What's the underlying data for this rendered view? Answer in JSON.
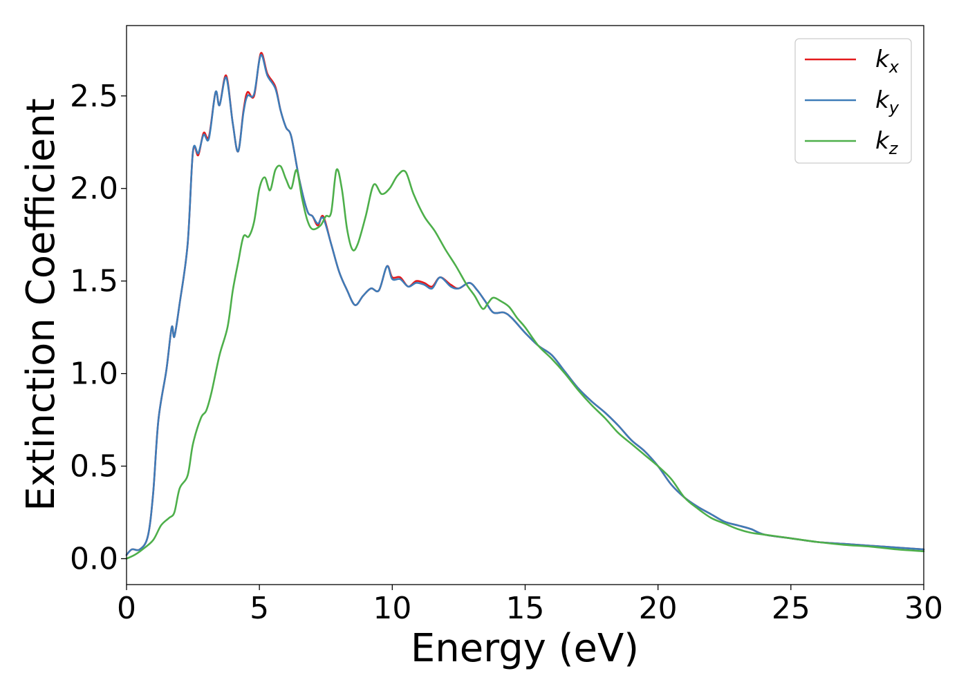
{
  "chart_data": {
    "type": "line",
    "xlabel": "Energy (eV)",
    "ylabel": "Extinction Coefficient",
    "xlim": [
      0,
      30
    ],
    "ylim": [
      -0.14,
      2.88
    ],
    "xticks": [
      0,
      5,
      10,
      15,
      20,
      25,
      30
    ],
    "xtick_labels": [
      "0",
      "5",
      "10",
      "15",
      "20",
      "25",
      "30"
    ],
    "yticks": [
      0.0,
      0.5,
      1.0,
      1.5,
      2.0,
      2.5
    ],
    "ytick_labels": [
      "0.0",
      "0.5",
      "1.0",
      "1.5",
      "2.0",
      "2.5"
    ],
    "grid": false,
    "legend_position": "top-right",
    "series": [
      {
        "name": "k",
        "subscript": "x",
        "color": "#e31a1c",
        "points": [
          [
            0,
            0.02
          ],
          [
            0.2,
            0.05
          ],
          [
            0.5,
            0.05
          ],
          [
            0.8,
            0.12
          ],
          [
            1.0,
            0.35
          ],
          [
            1.2,
            0.75
          ],
          [
            1.5,
            1.02
          ],
          [
            1.7,
            1.25
          ],
          [
            1.8,
            1.2
          ],
          [
            2.0,
            1.38
          ],
          [
            2.3,
            1.7
          ],
          [
            2.5,
            2.2
          ],
          [
            2.7,
            2.18
          ],
          [
            2.9,
            2.3
          ],
          [
            3.1,
            2.28
          ],
          [
            3.35,
            2.52
          ],
          [
            3.5,
            2.45
          ],
          [
            3.75,
            2.61
          ],
          [
            4.0,
            2.35
          ],
          [
            4.2,
            2.2
          ],
          [
            4.4,
            2.42
          ],
          [
            4.55,
            2.52
          ],
          [
            4.8,
            2.5
          ],
          [
            5.05,
            2.73
          ],
          [
            5.3,
            2.62
          ],
          [
            5.6,
            2.55
          ],
          [
            5.8,
            2.42
          ],
          [
            6.0,
            2.33
          ],
          [
            6.2,
            2.28
          ],
          [
            6.5,
            2.05
          ],
          [
            6.8,
            1.88
          ],
          [
            7.0,
            1.85
          ],
          [
            7.2,
            1.8
          ],
          [
            7.4,
            1.85
          ],
          [
            7.7,
            1.7
          ],
          [
            8.0,
            1.55
          ],
          [
            8.3,
            1.45
          ],
          [
            8.6,
            1.37
          ],
          [
            8.9,
            1.42
          ],
          [
            9.2,
            1.46
          ],
          [
            9.5,
            1.45
          ],
          [
            9.8,
            1.58
          ],
          [
            10.0,
            1.52
          ],
          [
            10.3,
            1.52
          ],
          [
            10.6,
            1.47
          ],
          [
            10.9,
            1.5
          ],
          [
            11.2,
            1.49
          ],
          [
            11.5,
            1.47
          ],
          [
            11.8,
            1.52
          ],
          [
            12.2,
            1.48
          ],
          [
            12.5,
            1.46
          ],
          [
            12.9,
            1.49
          ],
          [
            13.2,
            1.45
          ],
          [
            13.5,
            1.39
          ],
          [
            13.8,
            1.33
          ],
          [
            14.2,
            1.33
          ],
          [
            14.5,
            1.3
          ],
          [
            15.0,
            1.22
          ],
          [
            15.5,
            1.15
          ],
          [
            16.0,
            1.1
          ],
          [
            16.5,
            1.01
          ],
          [
            17.0,
            0.92
          ],
          [
            17.5,
            0.85
          ],
          [
            18.0,
            0.79
          ],
          [
            18.5,
            0.72
          ],
          [
            19.0,
            0.64
          ],
          [
            19.5,
            0.58
          ],
          [
            20.0,
            0.5
          ],
          [
            20.5,
            0.4
          ],
          [
            21.0,
            0.33
          ],
          [
            21.5,
            0.28
          ],
          [
            22.0,
            0.24
          ],
          [
            22.5,
            0.2
          ],
          [
            23.0,
            0.18
          ],
          [
            23.5,
            0.16
          ],
          [
            24.0,
            0.13
          ],
          [
            25.0,
            0.11
          ],
          [
            26.0,
            0.09
          ],
          [
            27.0,
            0.08
          ],
          [
            28.0,
            0.07
          ],
          [
            29.0,
            0.06
          ],
          [
            30.0,
            0.05
          ]
        ]
      },
      {
        "name": "k",
        "subscript": "y",
        "color": "#3d7cb8",
        "points": [
          [
            0,
            0.02
          ],
          [
            0.2,
            0.05
          ],
          [
            0.5,
            0.05
          ],
          [
            0.8,
            0.12
          ],
          [
            1.0,
            0.35
          ],
          [
            1.2,
            0.75
          ],
          [
            1.5,
            1.02
          ],
          [
            1.7,
            1.25
          ],
          [
            1.8,
            1.2
          ],
          [
            2.0,
            1.38
          ],
          [
            2.3,
            1.7
          ],
          [
            2.5,
            2.2
          ],
          [
            2.7,
            2.19
          ],
          [
            2.9,
            2.29
          ],
          [
            3.1,
            2.27
          ],
          [
            3.35,
            2.52
          ],
          [
            3.5,
            2.45
          ],
          [
            3.75,
            2.6
          ],
          [
            4.0,
            2.35
          ],
          [
            4.2,
            2.2
          ],
          [
            4.4,
            2.41
          ],
          [
            4.55,
            2.5
          ],
          [
            4.8,
            2.51
          ],
          [
            5.05,
            2.72
          ],
          [
            5.3,
            2.61
          ],
          [
            5.6,
            2.54
          ],
          [
            5.8,
            2.42
          ],
          [
            6.0,
            2.33
          ],
          [
            6.2,
            2.28
          ],
          [
            6.5,
            2.05
          ],
          [
            6.8,
            1.88
          ],
          [
            7.0,
            1.85
          ],
          [
            7.2,
            1.81
          ],
          [
            7.4,
            1.84
          ],
          [
            7.7,
            1.7
          ],
          [
            8.0,
            1.55
          ],
          [
            8.3,
            1.45
          ],
          [
            8.6,
            1.37
          ],
          [
            8.9,
            1.42
          ],
          [
            9.2,
            1.46
          ],
          [
            9.5,
            1.45
          ],
          [
            9.8,
            1.58
          ],
          [
            10.0,
            1.51
          ],
          [
            10.3,
            1.51
          ],
          [
            10.6,
            1.47
          ],
          [
            10.9,
            1.49
          ],
          [
            11.2,
            1.48
          ],
          [
            11.5,
            1.46
          ],
          [
            11.8,
            1.52
          ],
          [
            12.2,
            1.47
          ],
          [
            12.5,
            1.46
          ],
          [
            12.9,
            1.49
          ],
          [
            13.2,
            1.45
          ],
          [
            13.5,
            1.39
          ],
          [
            13.8,
            1.33
          ],
          [
            14.2,
            1.33
          ],
          [
            14.5,
            1.3
          ],
          [
            15.0,
            1.22
          ],
          [
            15.5,
            1.15
          ],
          [
            16.0,
            1.1
          ],
          [
            16.5,
            1.01
          ],
          [
            17.0,
            0.92
          ],
          [
            17.5,
            0.85
          ],
          [
            18.0,
            0.79
          ],
          [
            18.5,
            0.72
          ],
          [
            19.0,
            0.64
          ],
          [
            19.5,
            0.58
          ],
          [
            20.0,
            0.5
          ],
          [
            20.5,
            0.4
          ],
          [
            21.0,
            0.33
          ],
          [
            21.5,
            0.28
          ],
          [
            22.0,
            0.24
          ],
          [
            22.5,
            0.2
          ],
          [
            23.0,
            0.18
          ],
          [
            23.5,
            0.16
          ],
          [
            24.0,
            0.13
          ],
          [
            25.0,
            0.11
          ],
          [
            26.0,
            0.09
          ],
          [
            27.0,
            0.08
          ],
          [
            28.0,
            0.07
          ],
          [
            29.0,
            0.06
          ],
          [
            30.0,
            0.05
          ]
        ]
      },
      {
        "name": "k",
        "subscript": "z",
        "color": "#4daf4a",
        "points": [
          [
            0,
            0.0
          ],
          [
            0.3,
            0.02
          ],
          [
            0.6,
            0.05
          ],
          [
            1.0,
            0.1
          ],
          [
            1.3,
            0.18
          ],
          [
            1.6,
            0.22
          ],
          [
            1.8,
            0.25
          ],
          [
            2.0,
            0.38
          ],
          [
            2.3,
            0.45
          ],
          [
            2.5,
            0.62
          ],
          [
            2.8,
            0.76
          ],
          [
            3.0,
            0.8
          ],
          [
            3.2,
            0.9
          ],
          [
            3.5,
            1.1
          ],
          [
            3.8,
            1.25
          ],
          [
            4.0,
            1.45
          ],
          [
            4.2,
            1.6
          ],
          [
            4.4,
            1.74
          ],
          [
            4.6,
            1.74
          ],
          [
            4.8,
            1.82
          ],
          [
            5.0,
            2.0
          ],
          [
            5.2,
            2.06
          ],
          [
            5.4,
            1.99
          ],
          [
            5.6,
            2.1
          ],
          [
            5.8,
            2.12
          ],
          [
            6.0,
            2.05
          ],
          [
            6.2,
            2.0
          ],
          [
            6.4,
            2.1
          ],
          [
            6.6,
            1.95
          ],
          [
            6.8,
            1.83
          ],
          [
            7.0,
            1.78
          ],
          [
            7.3,
            1.8
          ],
          [
            7.5,
            1.85
          ],
          [
            7.7,
            1.87
          ],
          [
            7.9,
            2.1
          ],
          [
            8.1,
            2.0
          ],
          [
            8.3,
            1.78
          ],
          [
            8.5,
            1.67
          ],
          [
            8.7,
            1.7
          ],
          [
            9.0,
            1.85
          ],
          [
            9.3,
            2.02
          ],
          [
            9.6,
            1.97
          ],
          [
            9.9,
            2.0
          ],
          [
            10.2,
            2.07
          ],
          [
            10.5,
            2.09
          ],
          [
            10.8,
            1.97
          ],
          [
            11.2,
            1.85
          ],
          [
            11.6,
            1.77
          ],
          [
            12.0,
            1.67
          ],
          [
            12.4,
            1.58
          ],
          [
            12.8,
            1.48
          ],
          [
            13.1,
            1.42
          ],
          [
            13.4,
            1.35
          ],
          [
            13.6,
            1.38
          ],
          [
            13.8,
            1.41
          ],
          [
            14.1,
            1.39
          ],
          [
            14.4,
            1.36
          ],
          [
            14.7,
            1.3
          ],
          [
            15.0,
            1.25
          ],
          [
            15.5,
            1.15
          ],
          [
            16.0,
            1.08
          ],
          [
            16.5,
            1.0
          ],
          [
            17.0,
            0.91
          ],
          [
            17.5,
            0.83
          ],
          [
            18.0,
            0.76
          ],
          [
            18.5,
            0.68
          ],
          [
            19.0,
            0.62
          ],
          [
            19.5,
            0.56
          ],
          [
            20.0,
            0.5
          ],
          [
            20.5,
            0.43
          ],
          [
            21.0,
            0.33
          ],
          [
            21.5,
            0.27
          ],
          [
            22.0,
            0.22
          ],
          [
            22.5,
            0.19
          ],
          [
            23.0,
            0.16
          ],
          [
            23.5,
            0.14
          ],
          [
            24.0,
            0.13
          ],
          [
            25.0,
            0.11
          ],
          [
            26.0,
            0.09
          ],
          [
            27.0,
            0.075
          ],
          [
            28.0,
            0.065
          ],
          [
            29.0,
            0.05
          ],
          [
            30.0,
            0.04
          ]
        ]
      }
    ]
  }
}
